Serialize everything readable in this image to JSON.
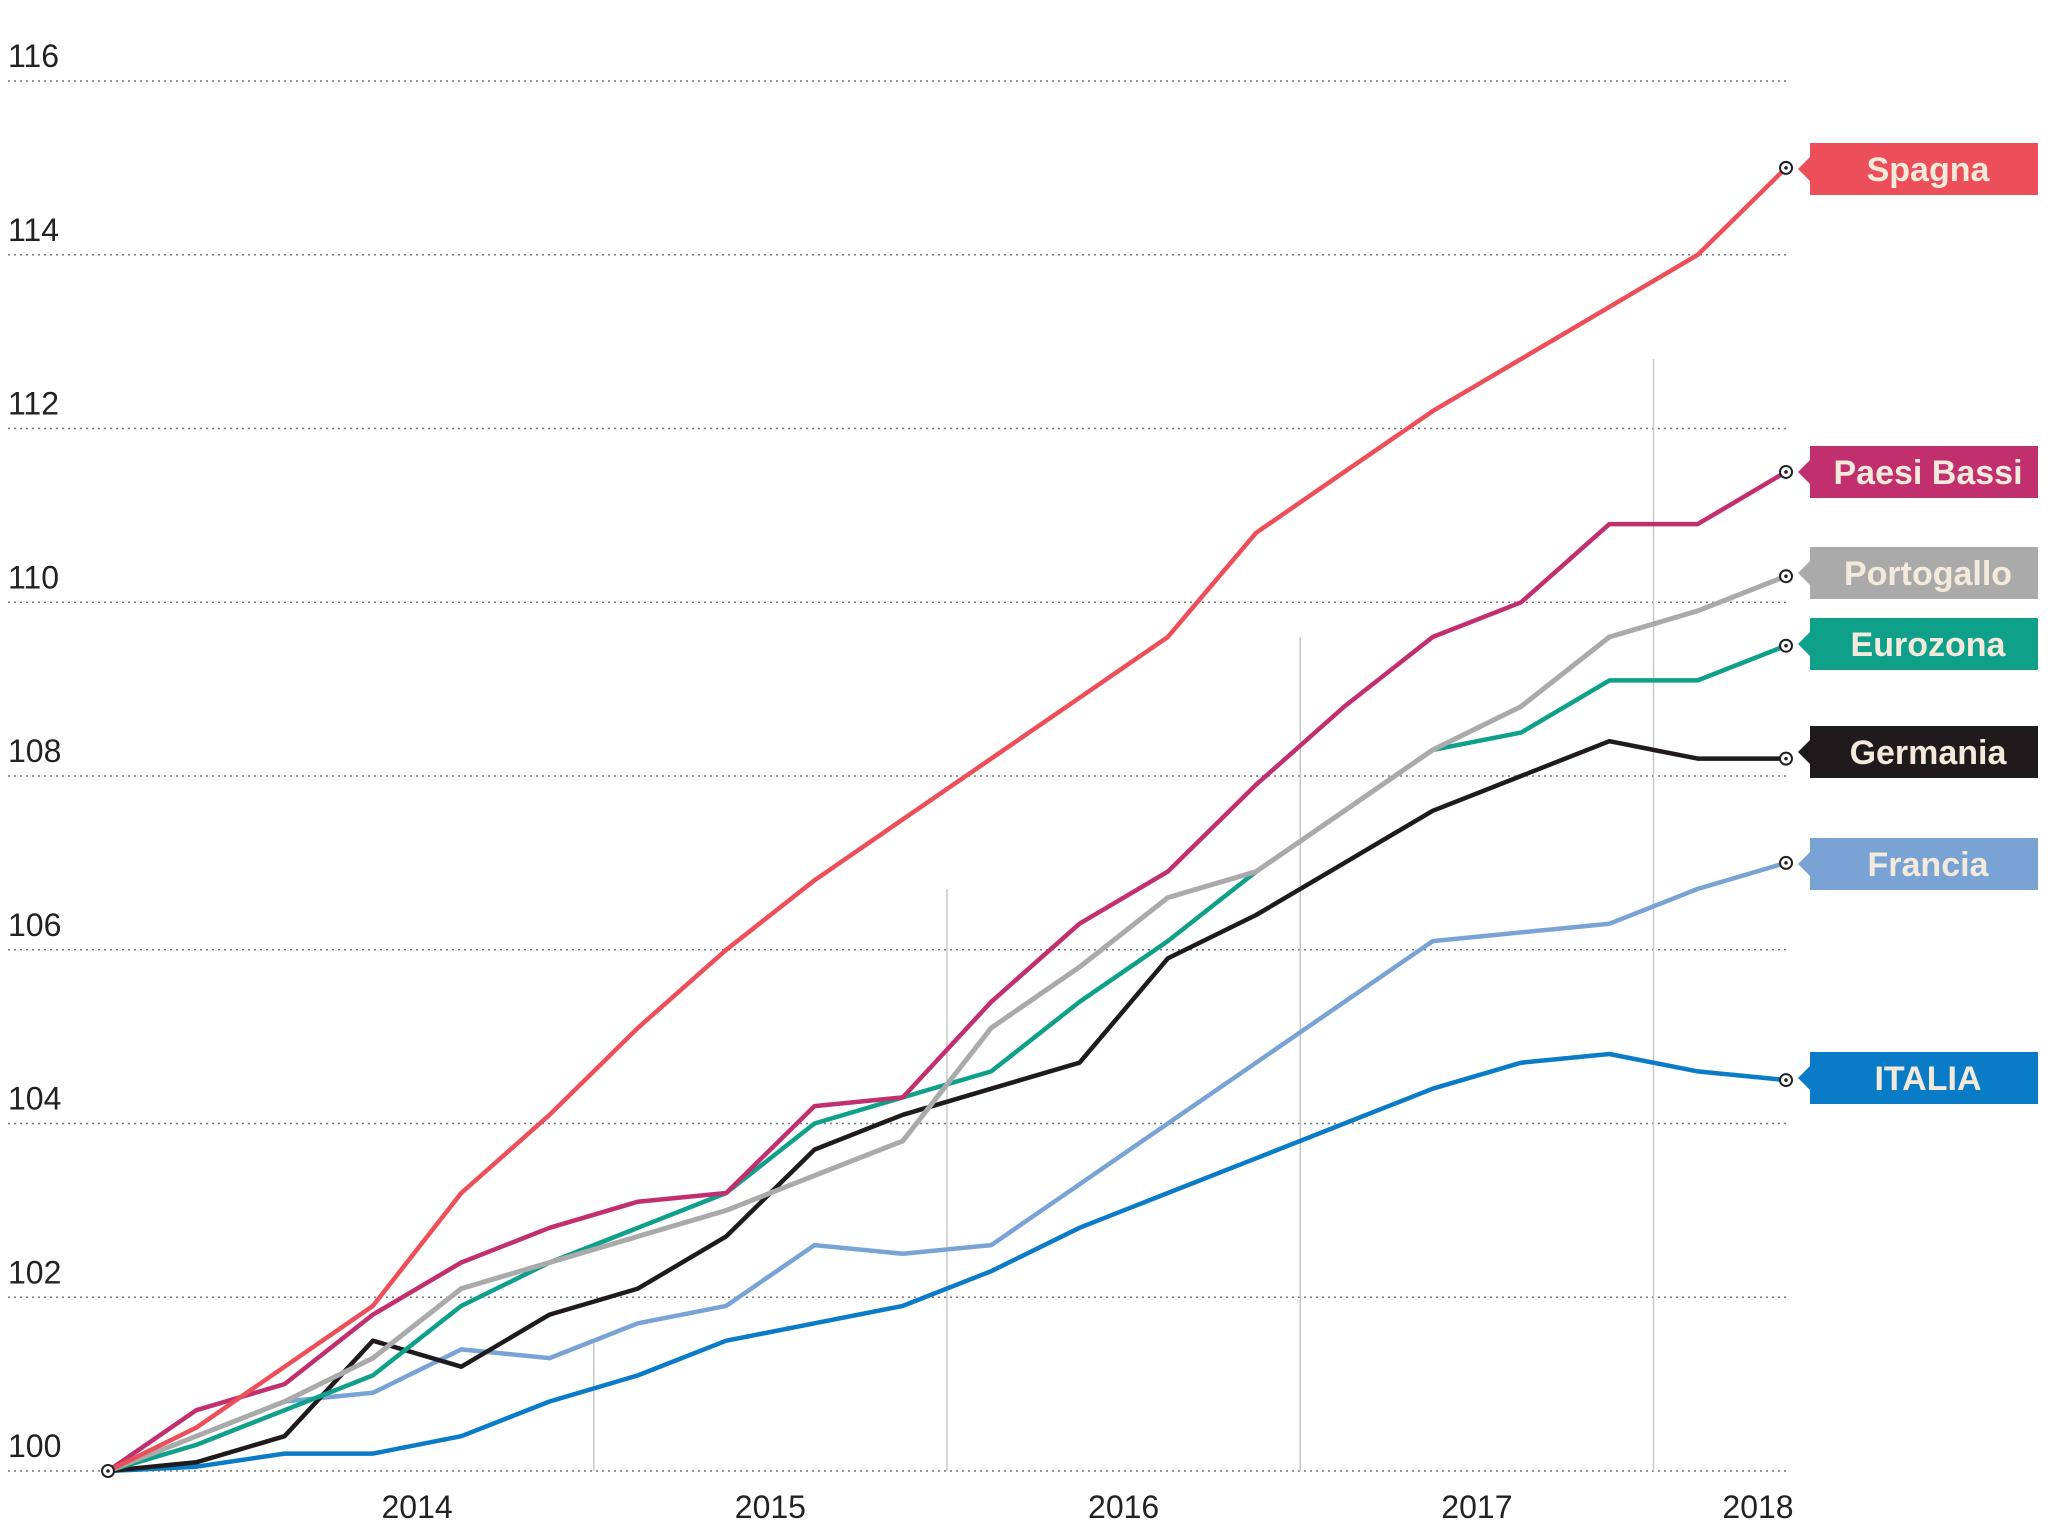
{
  "chart_data": {
    "type": "line",
    "title": "",
    "xlabel": "",
    "ylabel": "",
    "ylim": [
      100,
      116
    ],
    "yticks": [
      100,
      102,
      104,
      106,
      108,
      110,
      112,
      114,
      116
    ],
    "xticks": [
      "2014",
      "2015",
      "2016",
      "2017",
      "2018"
    ],
    "grid": "horizontal dotted",
    "legend": "end-of-line labels, right",
    "x": [
      "2013-Q3",
      "2013-Q4",
      "2014-Q1",
      "2014-Q2",
      "2014-Q3",
      "2014-Q4",
      "2015-Q1",
      "2015-Q2",
      "2015-Q3",
      "2015-Q4",
      "2016-Q1",
      "2016-Q2",
      "2016-Q3",
      "2016-Q4",
      "2017-Q1",
      "2017-Q2",
      "2017-Q3",
      "2017-Q4",
      "2018-Q1",
      "2018-Q2"
    ],
    "series": [
      {
        "name": "Spagna",
        "color": "#ec4f5a",
        "width": 4.5,
        "values": [
          100.0,
          100.5,
          101.2,
          101.9,
          103.2,
          104.1,
          105.1,
          106.0,
          106.8,
          107.5,
          108.2,
          108.9,
          109.6,
          110.8,
          111.5,
          112.2,
          112.8,
          113.4,
          114.0,
          115.0
        ]
      },
      {
        "name": "Paesi Bassi",
        "color": "#c12f6e",
        "width": 4.5,
        "values": [
          100.0,
          100.7,
          101.0,
          101.8,
          102.4,
          102.8,
          103.1,
          103.2,
          104.2,
          104.3,
          105.4,
          106.3,
          106.9,
          107.9,
          108.8,
          109.6,
          110.0,
          110.9,
          110.9,
          111.5
        ]
      },
      {
        "name": "Portogallo",
        "color": "#aaaaaa",
        "width": 5,
        "values": [
          100.0,
          100.4,
          100.8,
          101.3,
          102.1,
          102.4,
          102.7,
          103.0,
          103.4,
          103.8,
          105.1,
          105.8,
          106.6,
          106.9,
          107.6,
          108.3,
          108.8,
          109.6,
          109.9,
          110.3
        ]
      },
      {
        "name": "Eurozona",
        "color": "#0fa08a",
        "width": 4.5,
        "values": [
          100.0,
          100.3,
          100.7,
          101.1,
          101.9,
          102.4,
          102.8,
          103.2,
          104.0,
          104.3,
          104.6,
          105.4,
          106.1,
          106.9,
          107.6,
          108.3,
          108.5,
          109.1,
          109.1,
          109.5
        ]
      },
      {
        "name": "Germania",
        "color": "#1f1a1c",
        "width": 4.5,
        "values": [
          100.0,
          100.1,
          100.4,
          101.5,
          101.2,
          101.8,
          102.1,
          102.7,
          103.7,
          104.1,
          104.4,
          104.7,
          105.9,
          106.4,
          107.0,
          107.6,
          108.0,
          108.4,
          108.2,
          108.2
        ]
      },
      {
        "name": "Francia",
        "color": "#79a3d5",
        "width": 4.5,
        "values": [
          100.0,
          100.4,
          100.8,
          100.9,
          101.4,
          101.3,
          101.7,
          101.9,
          102.6,
          102.5,
          102.6,
          103.3,
          104.0,
          104.7,
          105.4,
          106.1,
          106.2,
          106.3,
          106.7,
          107.0
        ]
      },
      {
        "name": "ITALIA",
        "color": "#0a7bc6",
        "width": 4.5,
        "values": [
          100.0,
          100.05,
          100.2,
          100.2,
          100.4,
          100.8,
          101.1,
          101.5,
          101.7,
          101.9,
          102.3,
          102.8,
          103.2,
          103.6,
          104.0,
          104.4,
          104.7,
          104.8,
          104.6,
          104.5
        ]
      }
    ]
  }
}
